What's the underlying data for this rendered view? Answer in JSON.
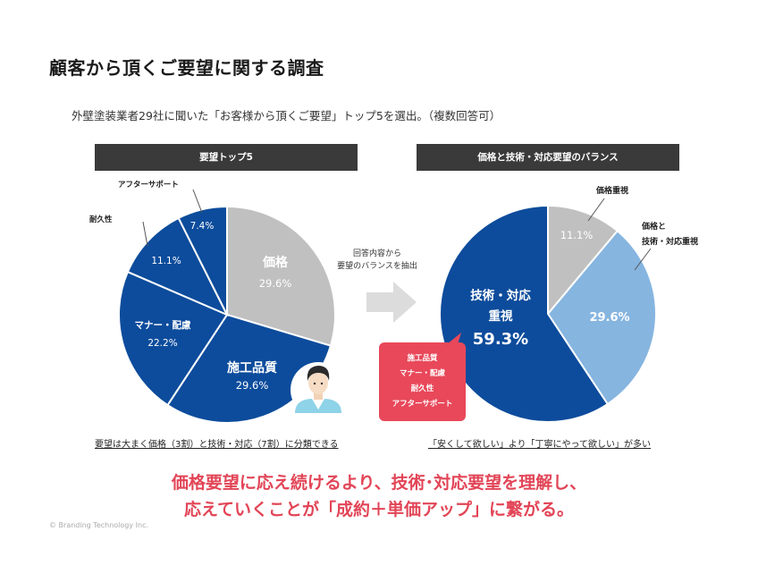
{
  "title": "顧客から頂くご要望に関する調査",
  "subtitle": "外壁塗装業者29社に聞いた「お客様から頂くご要望」トップ5を選出。（複数回答可）",
  "colors": {
    "gray": "#c0c0c0",
    "navy": "#0d4c9c",
    "lightblue": "#86b5e0",
    "accent": "#e8485a",
    "band": "#3a3a3a"
  },
  "left_panel": {
    "header": "要望トップ5",
    "note": "要望は大まく価格（3割）と技術・対応（7割）に分類できる"
  },
  "right_panel": {
    "header": "価格と技術・対応要望のバランス",
    "note": "「安くして欲しい」より「丁寧にやって欲しい」が多い"
  },
  "middle": {
    "line1": "回答内容から",
    "line2": "要望のバランスを抽出",
    "icon": "arrow-right-icon"
  },
  "callout": {
    "line1": "施工品質",
    "line2": "マナー・配慮",
    "line3": "耐久性",
    "line4": "アフターサポート"
  },
  "avatar": {
    "icon": "person-avatar-icon"
  },
  "chart_data": [
    {
      "type": "pie",
      "title": "要望トップ5",
      "categories": [
        "価格",
        "施工品質",
        "マナー・配慮",
        "耐久性",
        "アフターサポート"
      ],
      "values": [
        29.6,
        29.6,
        22.2,
        11.1,
        7.4
      ],
      "value_labels": [
        "29.6%",
        "29.6%",
        "22.2%",
        "11.1%",
        "7.4%"
      ],
      "colors": [
        "#c0c0c0",
        "#0d4c9c",
        "#0d4c9c",
        "#0d4c9c",
        "#0d4c9c"
      ]
    },
    {
      "type": "pie",
      "title": "価格と技術・対応要望のバランス",
      "categories": [
        "価格重視",
        "価格と技術・対応重視",
        "技術・対応重視"
      ],
      "values": [
        11.1,
        29.6,
        59.3
      ],
      "value_labels": [
        "11.1%",
        "29.6%",
        "59.3%"
      ],
      "colors": [
        "#c0c0c0",
        "#86b5e0",
        "#0d4c9c"
      ],
      "label_lines": [
        [
          "価格重視"
        ],
        [
          "価格と",
          "技術・対応重視"
        ],
        [
          "技術・対応",
          "重視"
        ]
      ]
    }
  ],
  "conclusion": {
    "line1": "価格要望に応え続けるより、技術･対応要望を理解し、",
    "line2": "応えていくことが「成約＋単価アップ」に繋がる。"
  },
  "copyright": "© Branding Technology Inc."
}
